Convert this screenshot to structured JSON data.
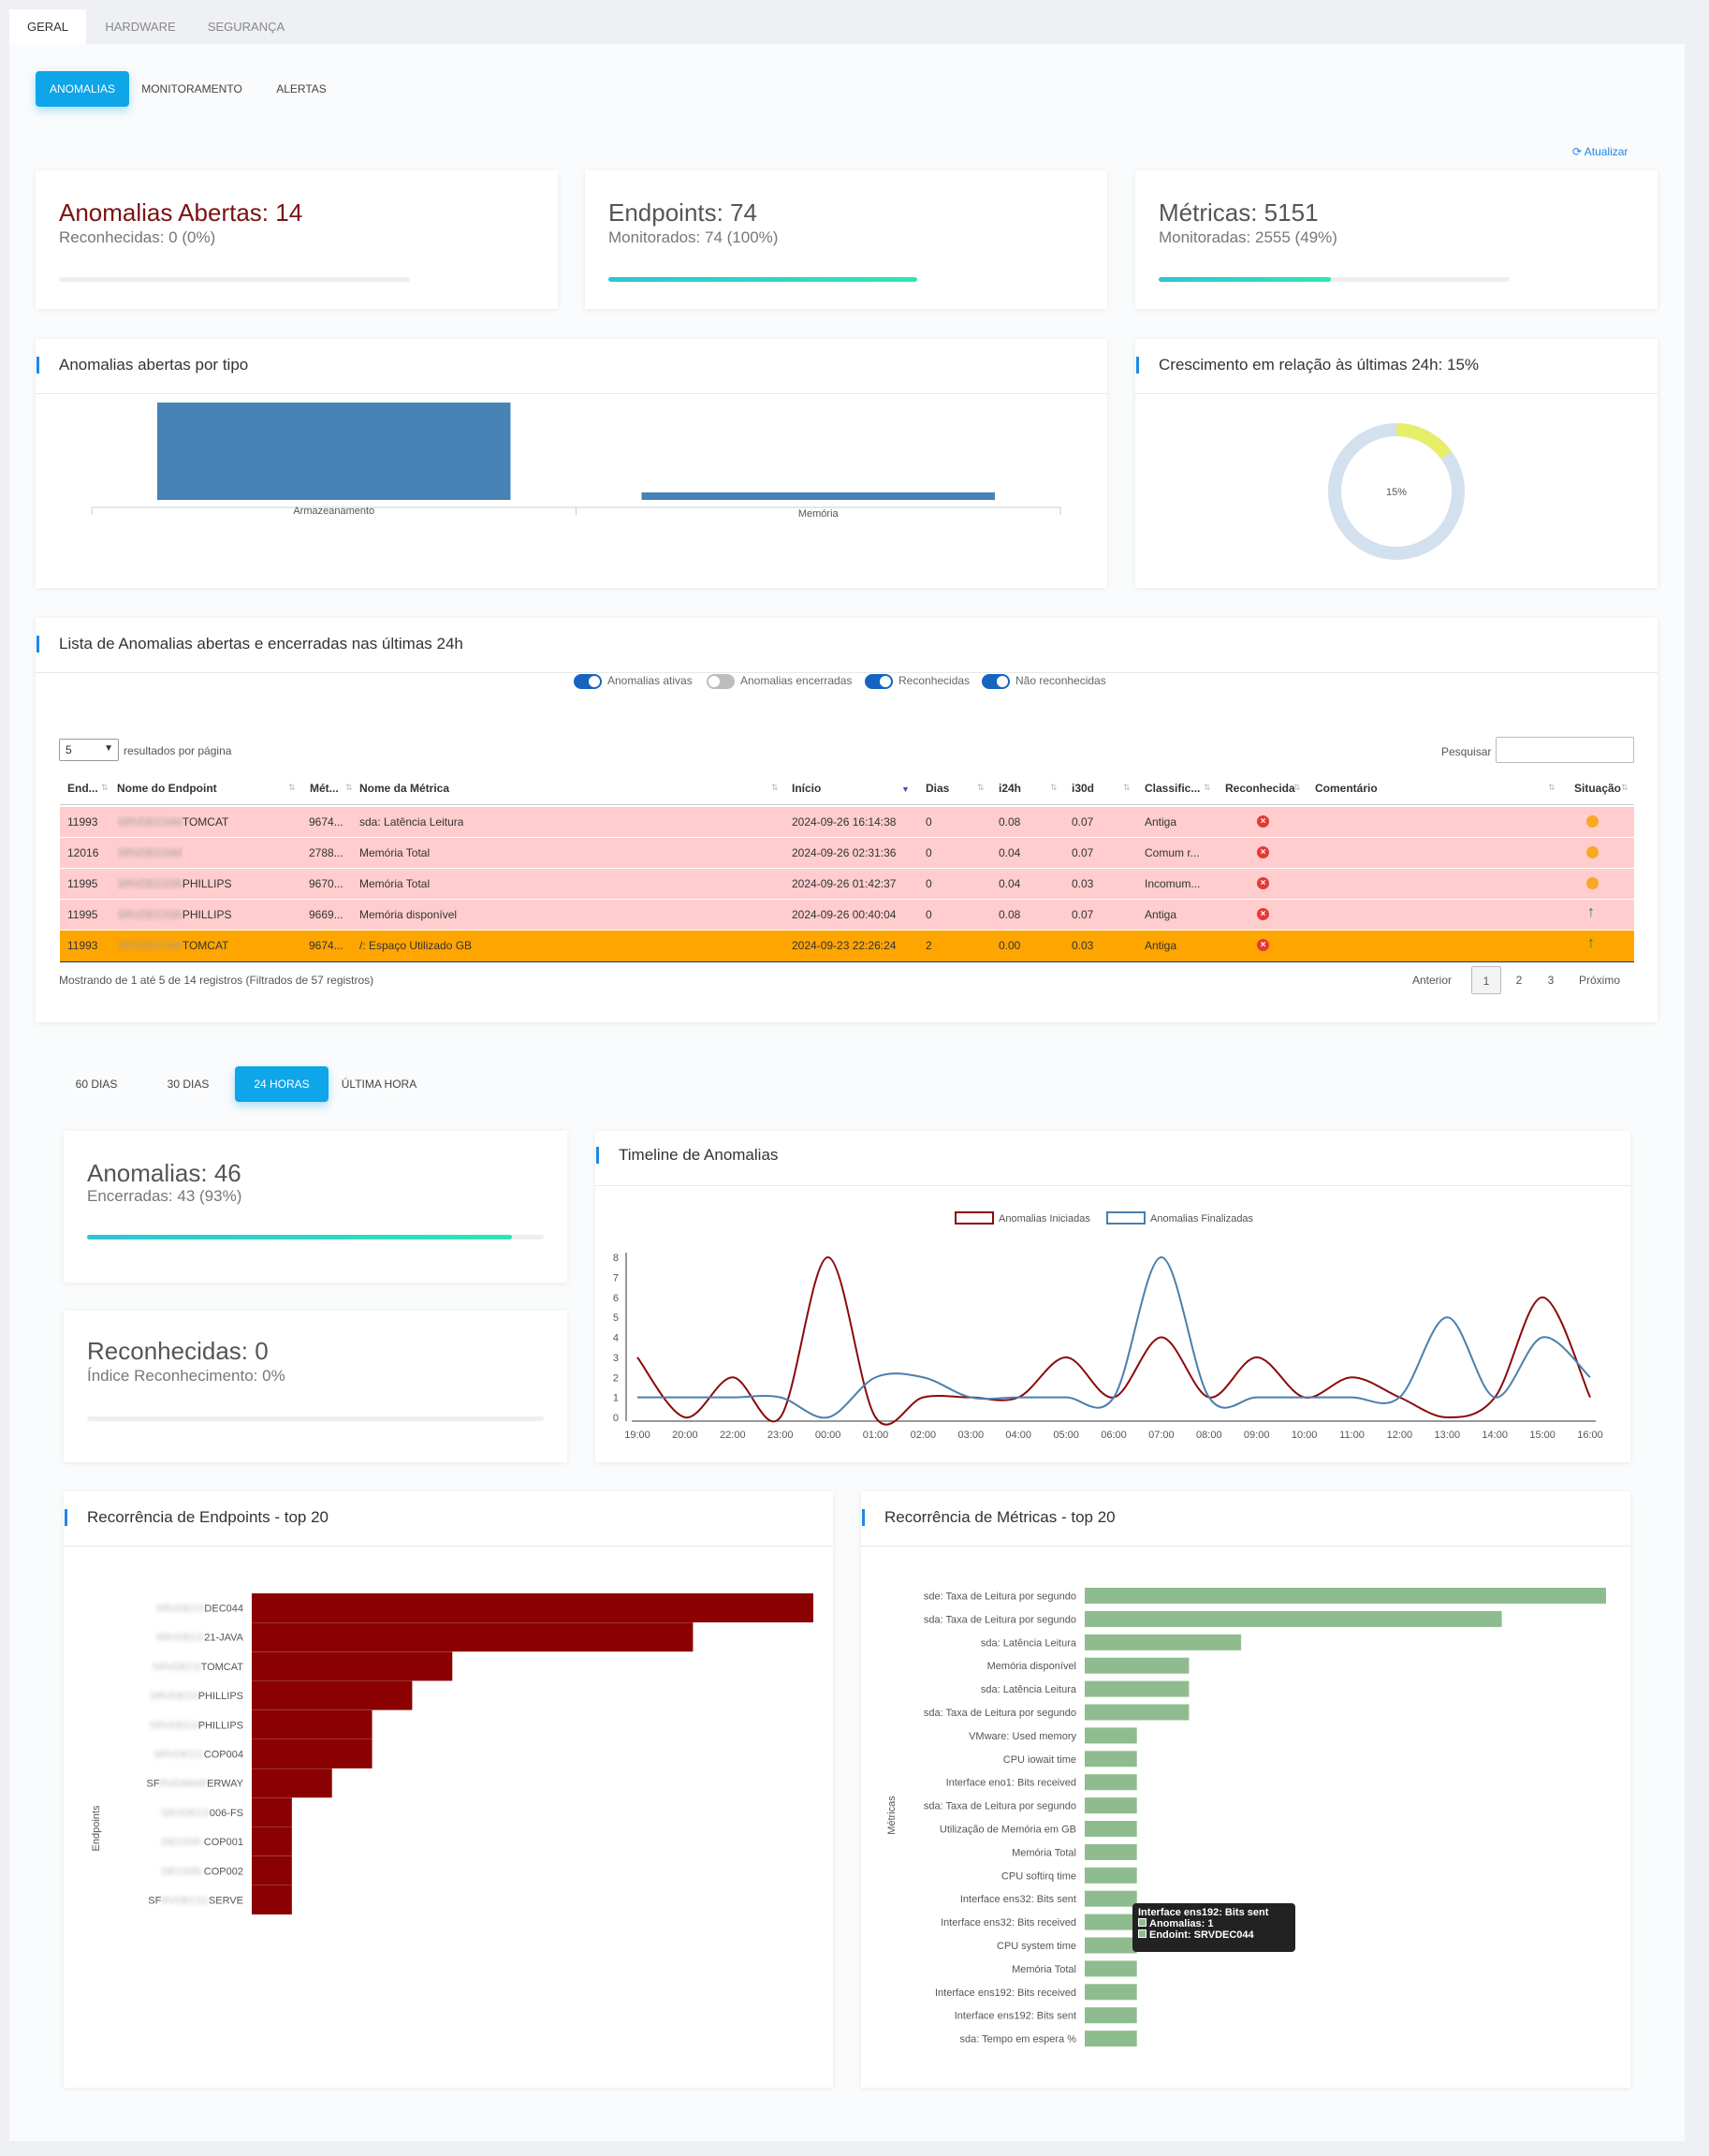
{
  "top_tabs": [
    "GERAL",
    "HARDWARE",
    "SEGURANÇA"
  ],
  "sub_tabs": [
    "ANOMALIAS",
    "MONITORAMENTO",
    "ALERTAS"
  ],
  "refresh_label": "Atualizar",
  "kpis": {
    "anomalias": {
      "title": "Anomalias Abertas: 14",
      "sub": "Reconhecidas: 0 (0%)",
      "progress": 0
    },
    "endpoints": {
      "title": "Endpoints: 74",
      "sub": "Monitorados: 74 (100%)",
      "progress": 1.0
    },
    "metricas": {
      "title": "Métricas: 5151",
      "sub": "Monitoradas: 2555 (49%)",
      "progress": 0.49
    }
  },
  "colors": {
    "accent": "#0ea5e9",
    "title_red": "#7b1113",
    "bar_blue": "#4682b4",
    "donut_track": "#d3e0ee",
    "donut_fill": "#e6ee6a",
    "row_red": "#ffcdcd",
    "row_orange": "#ffa500",
    "dark_red": "#8b0000",
    "green_bar": "#8fbc8f",
    "line_red": "#8b0a0a",
    "line_blue": "#4a7fae"
  },
  "chart_tipo": {
    "title": "Anomalias abertas por tipo",
    "chart_data": {
      "type": "bar",
      "categories": [
        "Armazeanamento",
        "Memória"
      ],
      "values": [
        13,
        1
      ]
    }
  },
  "donut": {
    "title": "Crescimento em relação às últimas 24h: 15%",
    "center_label": "15%",
    "chart_data": {
      "type": "pie",
      "values": [
        15,
        85
      ]
    }
  },
  "lista": {
    "title": "Lista de Anomalias abertas e encerradas nas últimas 24h",
    "toggles": [
      {
        "label": "Anomalias ativas",
        "on": true
      },
      {
        "label": "Anomalias encerradas",
        "on": false
      },
      {
        "label": "Reconhecidas",
        "on": true
      },
      {
        "label": "Não reconhecidas",
        "on": true
      }
    ],
    "page_size": "5",
    "page_size_label": "resultados por página",
    "search_label": "Pesquisar",
    "columns": [
      "End...",
      "Nome do Endpoint",
      "Mét...",
      "Nome da Métrica",
      "Início",
      "Dias",
      "i24h",
      "i30d",
      "Classific...",
      "Reconhecida",
      "Comentário",
      "Situação"
    ],
    "rows": [
      {
        "end": "11993",
        "endpoint_blur": "SRVDEC044",
        "endpoint": "TOMCAT",
        "met": "9674...",
        "metrica": "sda: Latência Leitura",
        "inicio": "2024-09-26 16:14:38",
        "dias": "0",
        "i24h": "0.08",
        "i30d": "0.07",
        "classif": "Antiga",
        "situacao": "clock"
      },
      {
        "end": "12016",
        "endpoint_blur": "SRVDEC044",
        "endpoint": "",
        "met": "2788...",
        "metrica": "Memória Total",
        "inicio": "2024-09-26 02:31:36",
        "dias": "0",
        "i24h": "0.04",
        "i30d": "0.07",
        "classif": "Comum r...",
        "situacao": "clock"
      },
      {
        "end": "11995",
        "endpoint_blur": "SRVDEC035",
        "endpoint": "PHILLIPS",
        "met": "9670...",
        "metrica": "Memória Total",
        "inicio": "2024-09-26 01:42:37",
        "dias": "0",
        "i24h": "0.04",
        "i30d": "0.03",
        "classif": "Incomum...",
        "situacao": "clock"
      },
      {
        "end": "11995",
        "endpoint_blur": "SRVDEC035",
        "endpoint": "PHILLIPS",
        "met": "9669...",
        "metrica": "Memória disponível",
        "inicio": "2024-09-26 00:40:04",
        "dias": "0",
        "i24h": "0.08",
        "i30d": "0.07",
        "classif": "Antiga",
        "situacao": "up"
      },
      {
        "end": "11993",
        "endpoint_blur": "SRVDEC044",
        "endpoint": "TOMCAT",
        "met": "9674...",
        "metrica": "/: Espaço Utilizado GB",
        "inicio": "2024-09-23 22:26:24",
        "dias": "2",
        "i24h": "0.00",
        "i30d": "0.03",
        "classif": "Antiga",
        "situacao": "up"
      }
    ],
    "footer": "Mostrando de 1 até 5 de 14 registros (Filtrados de 57 registros)",
    "pager": [
      "Anterior",
      "1",
      "2",
      "3",
      "Próximo"
    ]
  },
  "period_tabs": [
    "60 DIAS",
    "30 DIAS",
    "24 HORAS",
    "ÚLTIMA HORA"
  ],
  "periodo": {
    "anomalias": {
      "title": "Anomalias: 46",
      "sub": "Encerradas: 43 (93%)",
      "progress": 0.93
    },
    "reconhecidas": {
      "title": "Reconhecidas: 0",
      "sub": "Índice Reconhecimento: 0%",
      "progress": 0
    }
  },
  "timeline": {
    "title": "Timeline de Anomalias",
    "chart_data": {
      "type": "line",
      "x": [
        "19:00",
        "20:00",
        "22:00",
        "23:00",
        "00:00",
        "01:00",
        "02:00",
        "03:00",
        "04:00",
        "05:00",
        "06:00",
        "07:00",
        "08:00",
        "09:00",
        "10:00",
        "11:00",
        "12:00",
        "13:00",
        "14:00",
        "15:00",
        "16:00"
      ],
      "ylim": [
        0,
        8
      ],
      "yticks": [
        "0",
        "1",
        "2",
        "3",
        "4",
        "5",
        "6",
        "7",
        "8"
      ],
      "series": [
        {
          "name": "Anomalias Iniciadas",
          "values": [
            3,
            0,
            2,
            0,
            8,
            0,
            1,
            1,
            1,
            3,
            1,
            4,
            1,
            3,
            1,
            2,
            1,
            0,
            1,
            6,
            1
          ]
        },
        {
          "name": "Anomalias Finalizadas",
          "values": [
            1,
            1,
            1,
            1,
            0,
            2,
            2,
            1,
            1,
            1,
            1,
            8,
            1,
            1,
            1,
            1,
            1,
            5,
            1,
            4,
            2
          ]
        }
      ]
    }
  },
  "endpoints_chart": {
    "title": "Recorrência de Endpoints - top 20",
    "ylabel": "Endpoints",
    "chart_data": {
      "type": "bar",
      "categories_prefix": [
        "",
        "",
        "",
        "",
        "",
        "",
        "SF",
        "",
        "",
        "",
        "SF"
      ],
      "categories_blur": [
        "SRVDEC044",
        "SRVDEC021",
        "SRVDEC044",
        "SRVDEC035",
        "SRVDEC035",
        "SRVDECCOP004",
        "RVDIMARC-LAB",
        "SRVDEC006",
        "DEC035-SRVCOP001",
        "DEC035-SRVCOP002",
        "RVDEC013-ARCS"
      ],
      "categories": [
        "DEC044",
        "21-JAVA",
        "TOMCAT",
        "PHILLIPS",
        "PHILLIPS",
        "COP004",
        "ERWAY",
        "006-FS",
        "COP001",
        "COP002",
        "SERVE"
      ],
      "values": [
        14,
        11,
        5,
        4,
        3,
        3,
        2,
        1,
        1,
        1,
        1
      ]
    }
  },
  "metricas_chart": {
    "title": "Recorrência de Métricas - top 20",
    "ylabel": "Métricas",
    "chart_data": {
      "type": "bar",
      "categories": [
        "sde: Taxa de Leitura por segundo",
        "sda: Taxa de Leitura por segundo",
        "sda: Latência Leitura",
        "Memória disponível",
        "sda: Latência Leitura",
        "sda: Taxa de Leitura por segundo",
        "VMware: Used memory",
        "CPU iowait time",
        "Interface eno1: Bits received",
        "sda: Taxa de Leitura por segundo",
        "Utilização de Memória em GB",
        "Memória Total",
        "CPU softirq time",
        "Interface ens32: Bits sent",
        "Interface ens32: Bits received",
        "CPU system time",
        "Memória Total",
        "Interface ens192: Bits received",
        "Interface ens192: Bits sent",
        "sda: Tempo em espera %"
      ],
      "values": [
        10,
        8,
        3,
        2,
        2,
        2,
        1,
        1,
        1,
        1,
        1,
        1,
        1,
        1,
        1,
        1,
        1,
        1,
        1,
        1
      ]
    },
    "tooltip": {
      "title": "Interface ens192: Bits sent",
      "line1": "Anomalias: 1",
      "line2": "Endoint: SRVDEC044"
    }
  }
}
